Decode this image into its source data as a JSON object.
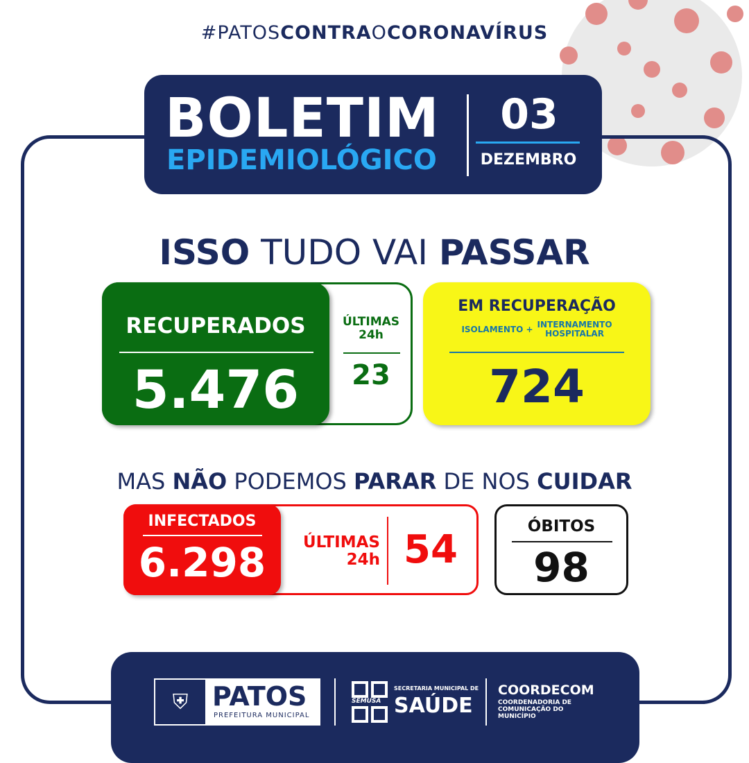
{
  "hashtag": {
    "p1": "#PATOS",
    "p2": "CONTRA",
    "p3": "O",
    "p4": "CORONAVÍRUS"
  },
  "header": {
    "title": "BOLETIM",
    "subtitle": "EPIDEMIOLÓGICO",
    "day": "03",
    "month": "DEZEMBRO"
  },
  "slogan1": {
    "w1": "ISSO",
    "w2": " TUDO VAI ",
    "w3": "PASSAR"
  },
  "recuperados": {
    "label": "RECUPERADOS",
    "value": "5.476",
    "last24_label_1": "ÚLTIMAS",
    "last24_label_2": "24h",
    "last24_value": "23",
    "color": "#0a6d12"
  },
  "em_recuperacao": {
    "label": "EM RECUPERAÇÃO",
    "sub1": "ISOLAMENTO +",
    "sub2a": "INTERNAMENTO",
    "sub2b": "HOSPITALAR",
    "value": "724",
    "color": "#f8f617"
  },
  "slogan2": {
    "w1": "MAS ",
    "w2": "NÃO",
    "w3": " PODEMOS ",
    "w4": "PARAR",
    "w5": " DE NOS ",
    "w6": "CUIDAR"
  },
  "infectados": {
    "label": "INFECTADOS",
    "value": "6.298",
    "last24_label_1": "ÚLTIMAS",
    "last24_label_2": "24h",
    "last24_value": "54",
    "color": "#f00d0d"
  },
  "obitos": {
    "label": "ÓBITOS",
    "value": "98"
  },
  "footer": {
    "patos_name": "PATOS",
    "patos_sub": "PREFEITURA MUNICIPAL",
    "semusa": "SEMUSA",
    "secretaria": "SECRETARIA MUNICIPAL DE",
    "saude": "SAÚDE",
    "coordecom": "COORDECOM",
    "coordecom_sub": "COORDENADORIA DE COMUNICAÇÃO DO MUNICÍPIO"
  }
}
